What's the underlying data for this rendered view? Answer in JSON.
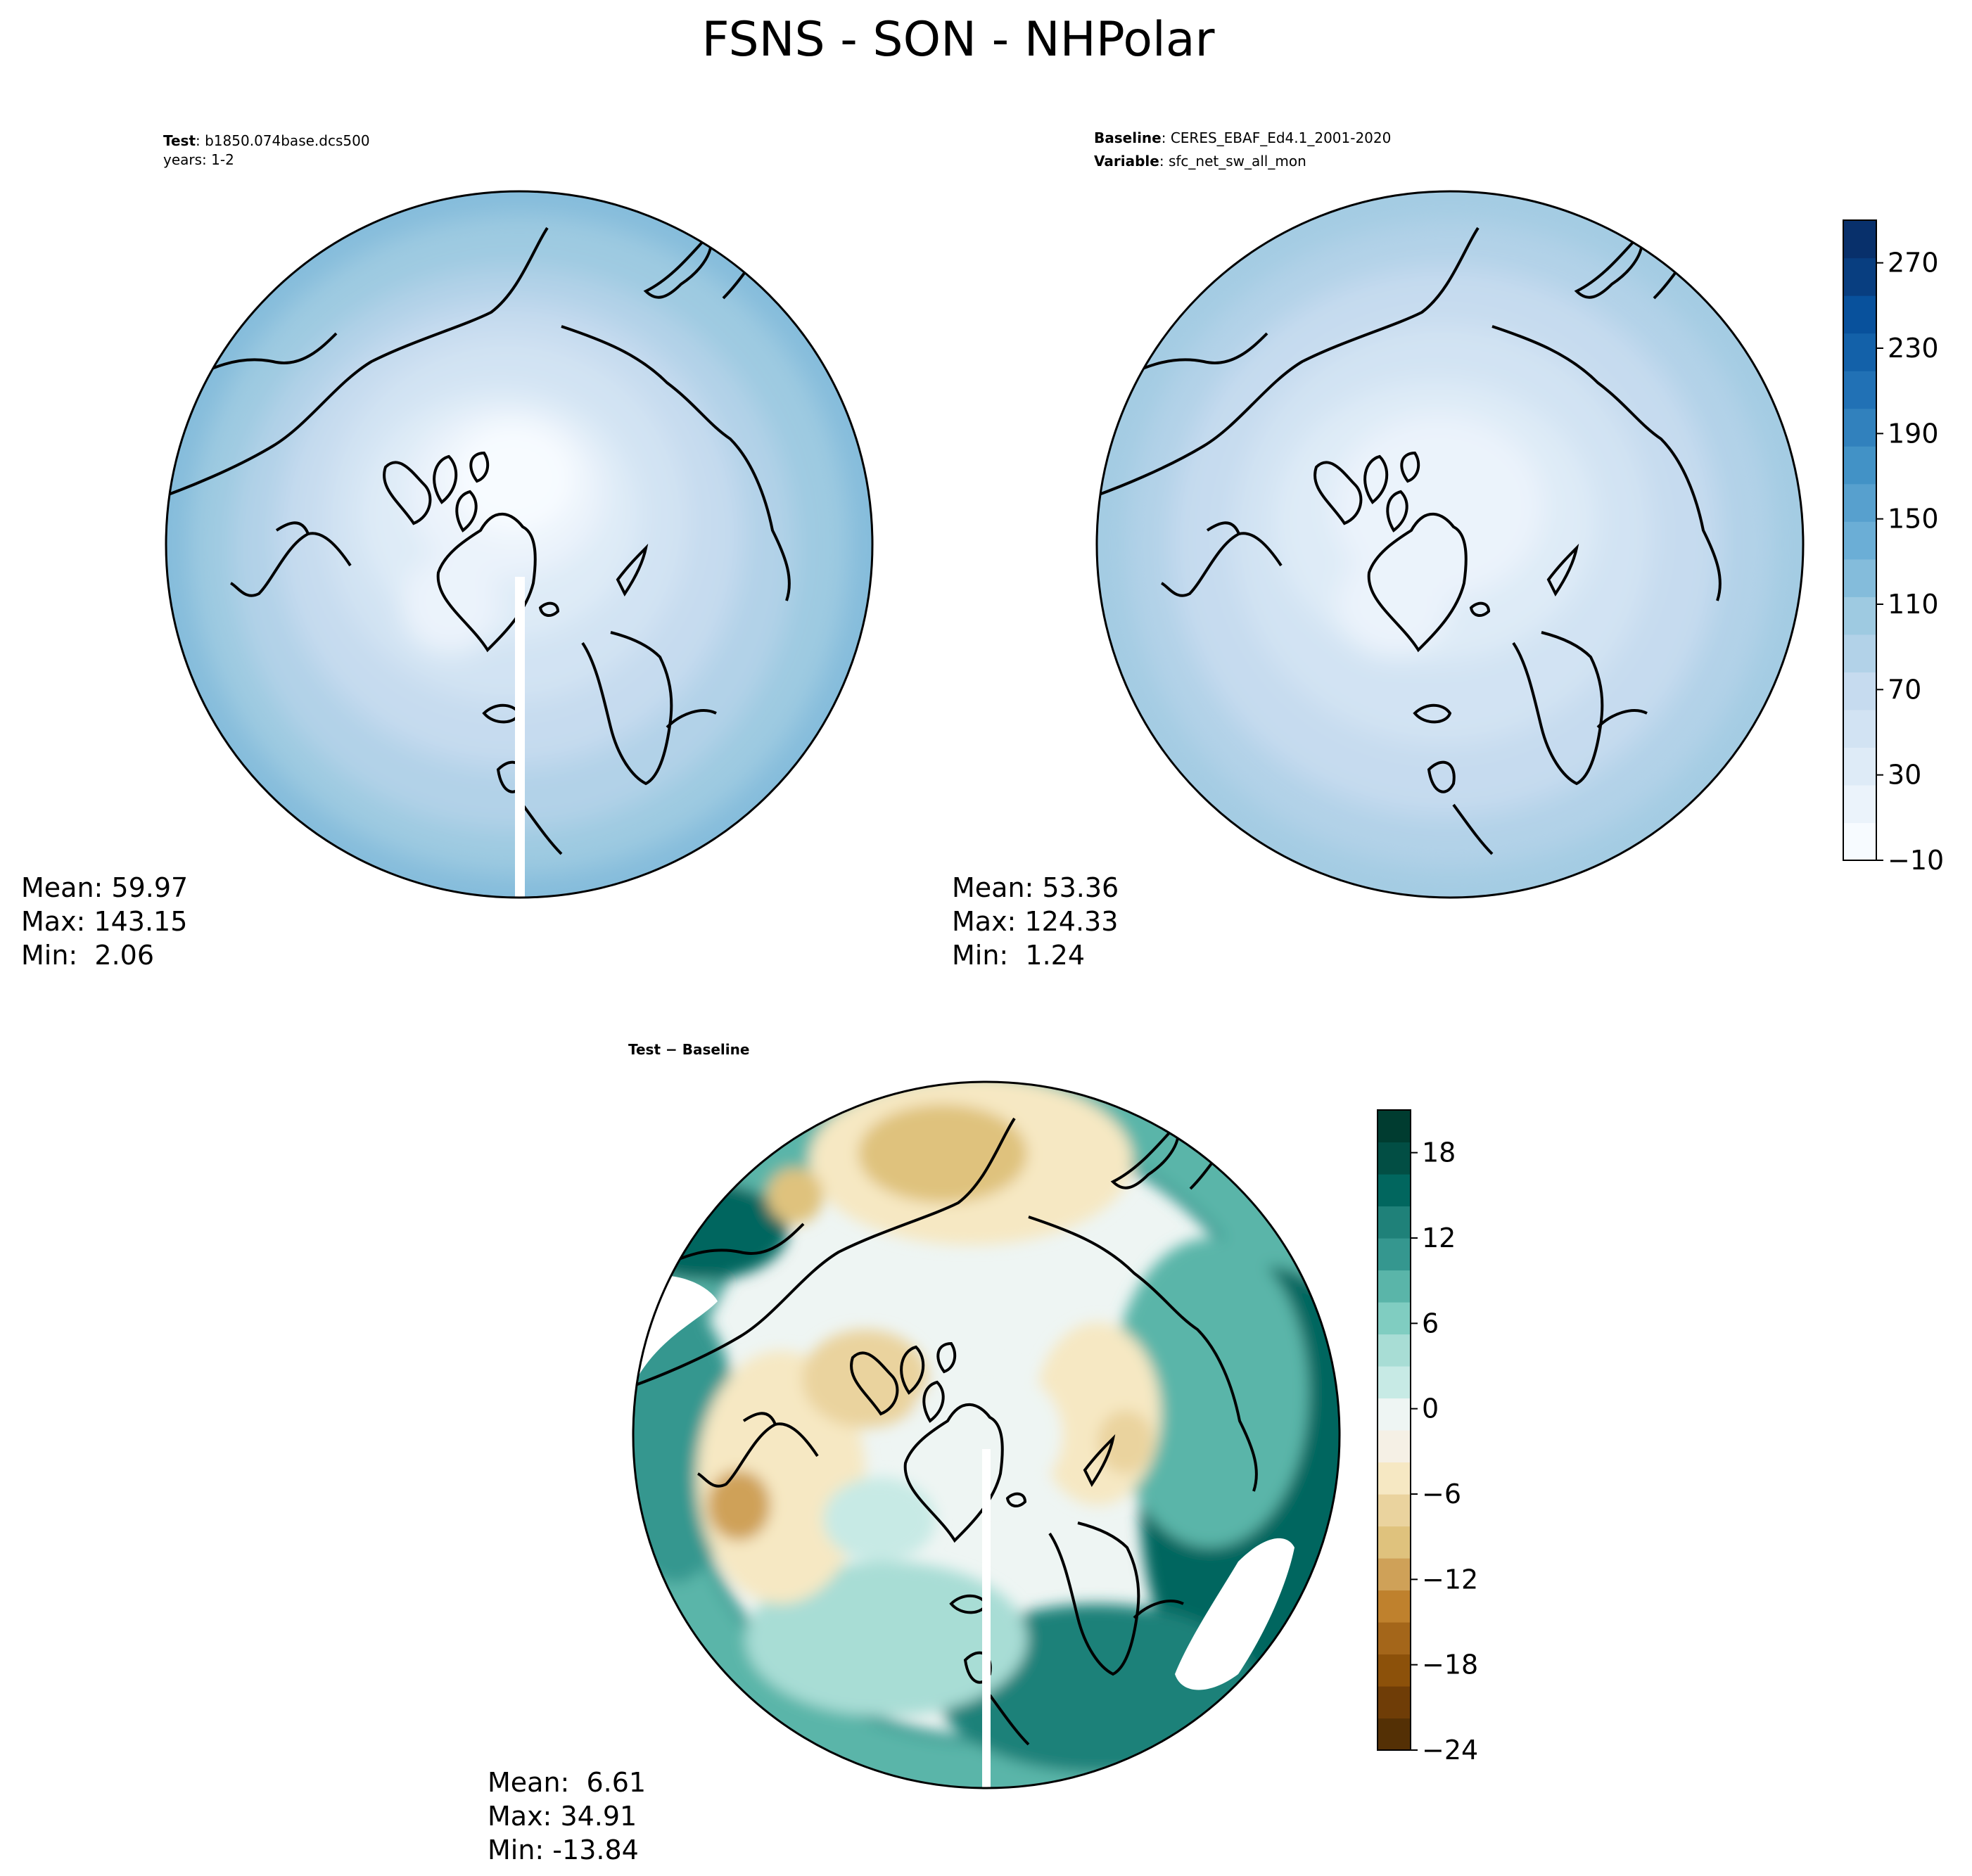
{
  "figure": {
    "title": "FSNS - SON - NHPolar"
  },
  "panels": {
    "test": {
      "header_key": "Test",
      "header_val": ": b1850.074base.dcs500",
      "header_line2": "years: 1-2",
      "stats": {
        "mean": "Mean: 59.97",
        "max": "Max: 143.15",
        "min": "Min:  2.06"
      }
    },
    "baseline": {
      "header_key": "Baseline",
      "header_val": ": CERES_EBAF_Ed4.1_2001-2020",
      "header_key2": "Variable",
      "header_val2": ": sfc_net_sw_all_mon",
      "stats": {
        "mean": "Mean: 53.36",
        "max": "Max: 124.33",
        "min": "Min:  1.24"
      }
    },
    "diff": {
      "header_key": "Test",
      "header_mid": " − ",
      "header_val": "Baseline",
      "stats": {
        "mean": "Mean:  6.61",
        "max": "Max: 34.91",
        "min": "Min: -13.84"
      }
    }
  },
  "colorbar_top": {
    "colormap": "Blues",
    "range": [
      -10,
      290
    ],
    "ticks": [
      "−10",
      "30",
      "70",
      "110",
      "150",
      "190",
      "230",
      "270"
    ],
    "colors": [
      "#f7fbff",
      "#ebf3fb",
      "#deebf7",
      "#d2e3f3",
      "#c6dbef",
      "#b2d2e8",
      "#9ecae1",
      "#84bcdb",
      "#6baed6",
      "#57a0ce",
      "#4292c6",
      "#3181bd",
      "#2171b5",
      "#1361a9",
      "#08519c",
      "#083e80",
      "#08306b"
    ]
  },
  "colorbar_diff": {
    "colormap": "BrBG",
    "range": [
      -24,
      21
    ],
    "ticks": [
      "−24",
      "−18",
      "−12",
      "−6",
      "0",
      "6",
      "12",
      "18"
    ],
    "colors": [
      "#543005",
      "#6f3d07",
      "#8c510a",
      "#a4661a",
      "#bf812d",
      "#cfa158",
      "#dfc27d",
      "#ead39e",
      "#f6e8c3",
      "#f5f0e5",
      "#eef5f3",
      "#c7eae5",
      "#a8ddd5",
      "#80cdc1",
      "#5ab5a9",
      "#35978f",
      "#1f8179",
      "#01665e",
      "#024e44",
      "#003c30"
    ]
  }
}
